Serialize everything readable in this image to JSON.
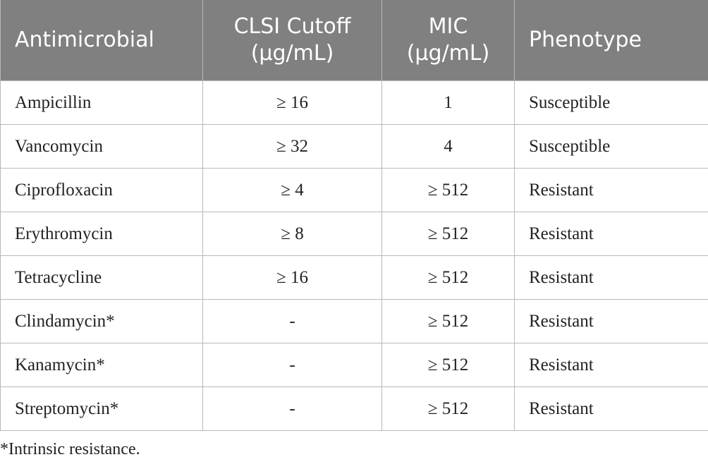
{
  "table": {
    "header": [
      [
        "Antimicrobial"
      ],
      [
        "CLSI Cutoff",
        "(μg/mL)"
      ],
      [
        "MIC",
        "(μg/mL)"
      ],
      [
        "Phenotype"
      ]
    ],
    "rows": [
      [
        "Ampicillin",
        "≥ 16",
        "1",
        "Susceptible"
      ],
      [
        "Vancomycin",
        "≥ 32",
        "4",
        "Susceptible"
      ],
      [
        "Ciprofloxacin",
        "≥ 4",
        "≥ 512",
        "Resistant"
      ],
      [
        "Erythromycin",
        "≥ 8",
        "≥ 512",
        "Resistant"
      ],
      [
        "Tetracycline",
        "≥ 16",
        "≥ 512",
        "Resistant"
      ],
      [
        "Clindamycin*",
        "-",
        "≥ 512",
        "Resistant"
      ],
      [
        "Kanamycin*",
        "-",
        "≥ 512",
        "Resistant"
      ],
      [
        "Streptomycin*",
        "-",
        "≥ 512",
        "Resistant"
      ]
    ]
  },
  "footnote": "*Intrinsic resistance."
}
